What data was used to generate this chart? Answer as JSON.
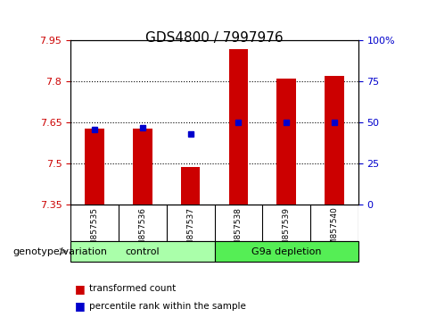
{
  "title": "GDS4800 / 7997976",
  "samples": [
    "GSM857535",
    "GSM857536",
    "GSM857537",
    "GSM857538",
    "GSM857539",
    "GSM857540"
  ],
  "red_values": [
    7.63,
    7.63,
    7.49,
    7.92,
    7.81,
    7.82
  ],
  "blue_values": [
    46,
    47,
    43,
    50,
    50,
    50
  ],
  "ylim_left": [
    7.35,
    7.95
  ],
  "ylim_right": [
    0,
    100
  ],
  "yticks_left": [
    7.35,
    7.5,
    7.65,
    7.8,
    7.95
  ],
  "yticks_right": [
    0,
    25,
    50,
    75,
    100
  ],
  "ytick_labels_left": [
    "7.35",
    "7.5",
    "7.65",
    "7.8",
    "7.95"
  ],
  "ytick_labels_right": [
    "0",
    "25",
    "50",
    "75",
    "100%"
  ],
  "hlines": [
    7.5,
    7.65,
    7.8
  ],
  "bar_width": 0.4,
  "bar_color": "#cc0000",
  "dot_color": "#0000cc",
  "bar_baseline": 7.35,
  "groups": [
    {
      "label": "control",
      "indices": [
        0,
        1,
        2
      ],
      "color": "#aaffaa"
    },
    {
      "label": "G9a depletion",
      "indices": [
        3,
        4,
        5
      ],
      "color": "#55ee55"
    }
  ],
  "group_row_label": "genotype/variation",
  "legend_items": [
    {
      "label": "transformed count",
      "color": "#cc0000"
    },
    {
      "label": "percentile rank within the sample",
      "color": "#0000cc"
    }
  ],
  "plot_bg": "#ffffff",
  "tick_area_bg": "#cccccc",
  "left_tick_color": "#cc0000",
  "right_tick_color": "#0000cc",
  "grid_color": "#000000"
}
